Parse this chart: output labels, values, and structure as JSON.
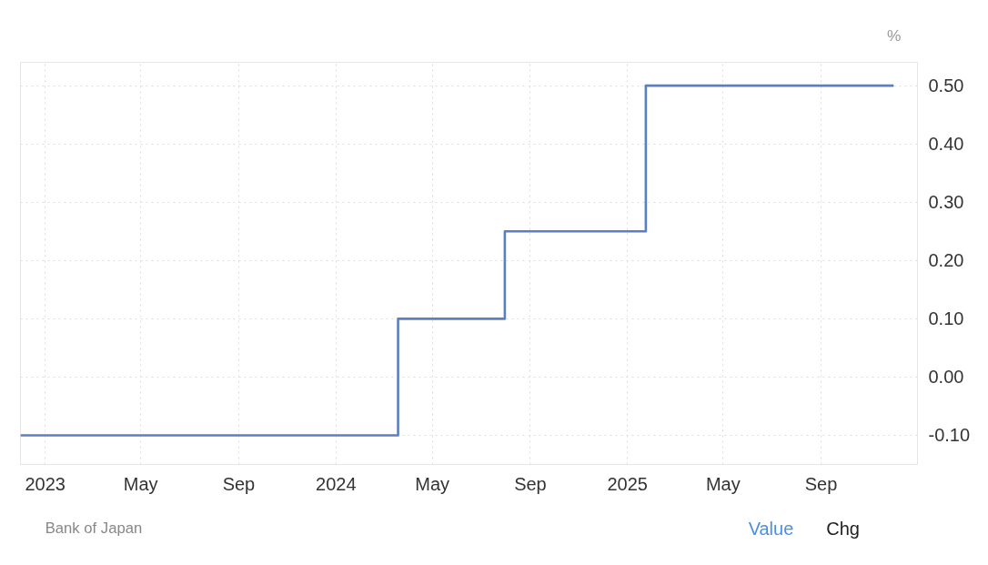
{
  "chart_data": {
    "type": "step",
    "ylabel": "%",
    "x": [
      "2022-12-01",
      "2024-03-19",
      "2024-07-31",
      "2025-01-24",
      "2025-12-01"
    ],
    "series": [
      {
        "color": "#5b7fc0",
        "values": [
          -0.1,
          0.1,
          0.25,
          0.5,
          0.5
        ]
      }
    ],
    "xlim": [
      "2022-12-01",
      "2025-12-31"
    ],
    "xticks": [
      {
        "value": "2023-01-01",
        "label": "2023"
      },
      {
        "value": "2023-05-01",
        "label": "May"
      },
      {
        "value": "2023-09-01",
        "label": "Sep"
      },
      {
        "value": "2024-01-01",
        "label": "2024"
      },
      {
        "value": "2024-05-01",
        "label": "May"
      },
      {
        "value": "2024-09-01",
        "label": "Sep"
      },
      {
        "value": "2025-01-01",
        "label": "2025"
      },
      {
        "value": "2025-05-01",
        "label": "May"
      },
      {
        "value": "2025-09-01",
        "label": "Sep"
      }
    ],
    "ylim": [
      -0.15,
      0.54
    ],
    "yticks": [
      {
        "value": -0.1,
        "label": "-0.10"
      },
      {
        "value": 0.0,
        "label": "0.00"
      },
      {
        "value": 0.1,
        "label": "0.10"
      },
      {
        "value": 0.2,
        "label": "0.20"
      },
      {
        "value": 0.3,
        "label": "0.30"
      },
      {
        "value": 0.4,
        "label": "0.40"
      },
      {
        "value": 0.5,
        "label": "0.50"
      }
    ],
    "grid": true,
    "line_style": "solid",
    "marker": "none",
    "annotations": [
      "Bank of Japan",
      "Value",
      "Chg"
    ]
  }
}
